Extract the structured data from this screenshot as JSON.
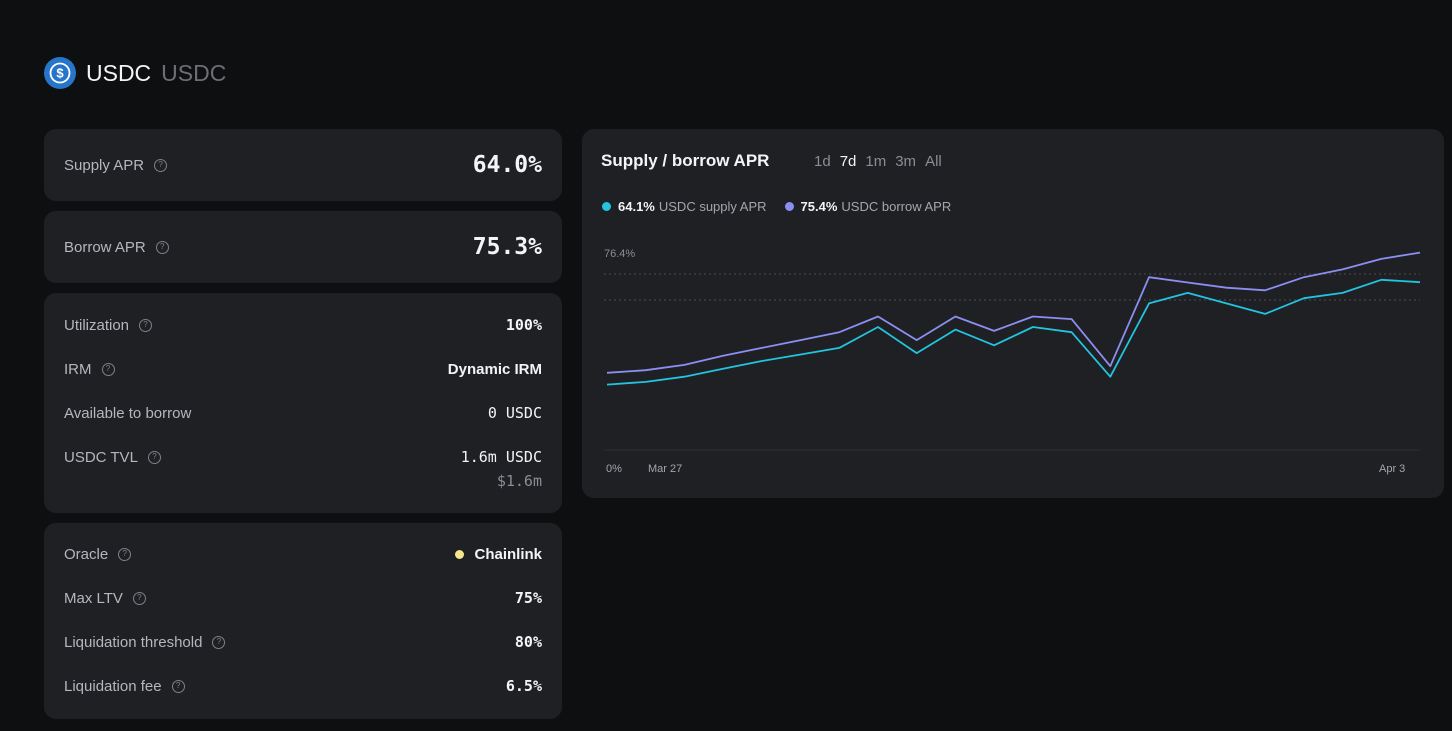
{
  "header": {
    "title": "USDC",
    "subtitle": "USDC",
    "logo_icon": "usdc-logo-icon",
    "logo_color": "#2775ca"
  },
  "supply_apr": {
    "label": "Supply APR",
    "value": "64.0%"
  },
  "borrow_apr": {
    "label": "Borrow APR",
    "value": "75.3%"
  },
  "market": {
    "utilization": {
      "label": "Utilization",
      "value": "100%"
    },
    "irm": {
      "label": "IRM",
      "value": "Dynamic IRM"
    },
    "available": {
      "label": "Available to borrow",
      "value": "0 USDC"
    },
    "tvl": {
      "label": "USDC TVL",
      "value": "1.6m USDC",
      "usd": "$1.6m"
    }
  },
  "risk": {
    "oracle": {
      "label": "Oracle",
      "value": "Chainlink",
      "dot_color": "#f5e68c"
    },
    "max_ltv": {
      "label": "Max LTV",
      "value": "75%"
    },
    "liq_threshold": {
      "label": "Liquidation threshold",
      "value": "80%"
    },
    "liq_fee": {
      "label": "Liquidation fee",
      "value": "6.5%"
    }
  },
  "chart": {
    "title": "Supply / borrow APR",
    "periods": [
      "1d",
      "7d",
      "1m",
      "3m",
      "All"
    ],
    "active_period": "7d",
    "legend": [
      {
        "value": "64.1%",
        "name": "USDC supply APR",
        "color": "#22c4e0"
      },
      {
        "value": "75.4%",
        "name": "USDC borrow APR",
        "color": "#8b8ff2"
      }
    ]
  },
  "chart_data": {
    "type": "line",
    "y_top_label": "76.4%",
    "y_bottom_label": "0%",
    "x_labels": [
      "Mar 27",
      "Apr 3"
    ],
    "ylim": [
      0,
      76.4
    ],
    "x": [
      "Mar 26",
      "Mar 26.5",
      "Mar 27",
      "Mar 28",
      "Mar 29",
      "Mar 30",
      "Mar 31",
      "Apr 1",
      "Apr 1.15",
      "Apr 1.25",
      "Apr 1.4",
      "Apr 1.5",
      "Apr 1.7",
      "Apr 1.85",
      "Apr 1.9",
      "Apr 2.0",
      "Apr 2.1",
      "Apr 2.3",
      "Apr 2.5",
      "Apr 3",
      "Apr 3.5",
      "Apr 4"
    ],
    "series": [
      {
        "name": "USDC supply APR",
        "color": "#22c4e0",
        "values": [
          25.0,
          26.0,
          28.0,
          31.0,
          34.0,
          36.5,
          39.0,
          47.0,
          37.0,
          46.0,
          40.0,
          47.0,
          45.0,
          28.0,
          56.0,
          60.0,
          56.0,
          52.0,
          58.0,
          60.0,
          65.0,
          64.1
        ]
      },
      {
        "name": "USDC borrow APR",
        "color": "#8b8ff2",
        "values": [
          29.5,
          30.5,
          32.5,
          36.0,
          39.0,
          42.0,
          45.0,
          51.0,
          42.0,
          51.0,
          45.5,
          51.0,
          50.0,
          32.0,
          66.0,
          64.0,
          62.0,
          61.0,
          66.0,
          69.0,
          73.0,
          75.4
        ]
      }
    ],
    "grid": true
  }
}
